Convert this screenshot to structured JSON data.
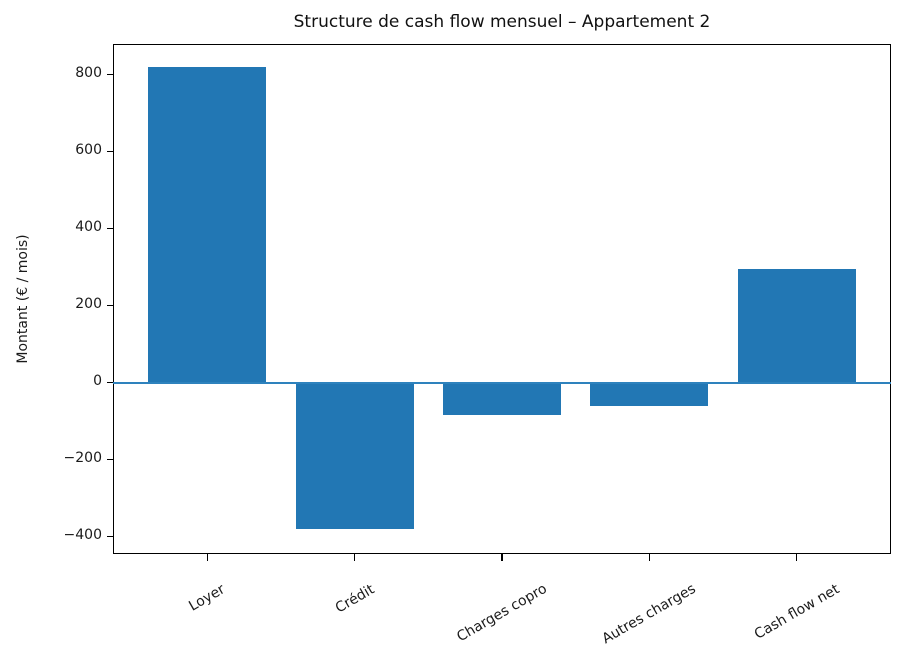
{
  "chart_data": {
    "type": "bar",
    "title": "Structure de cash flow mensuel – Appartement 2",
    "xlabel": "",
    "ylabel": "Montant (€ / mois)",
    "categories": [
      "Loyer",
      "Crédit",
      "Charges copro",
      "Autres charges",
      "Cash flow net"
    ],
    "values": [
      820,
      -380,
      -85,
      -60,
      295
    ],
    "ylim": [
      -445,
      880
    ],
    "xlim": [
      -0.64,
      4.64
    ],
    "bar_width_fraction": 0.8,
    "yticks": [
      800,
      600,
      400,
      200,
      0,
      -200,
      -400
    ],
    "ytick_labels": [
      "800",
      "600",
      "400",
      "200",
      "0",
      "−200",
      "−400"
    ],
    "x_tick_label_rotation_deg": 30,
    "grid": false,
    "legend": null,
    "zero_line": true,
    "bar_color": "#2277b4",
    "zero_line_color": "#2e82bd",
    "axis_color": "#000000",
    "text_color": "#1a1a1a",
    "background_color": "#ffffff"
  }
}
